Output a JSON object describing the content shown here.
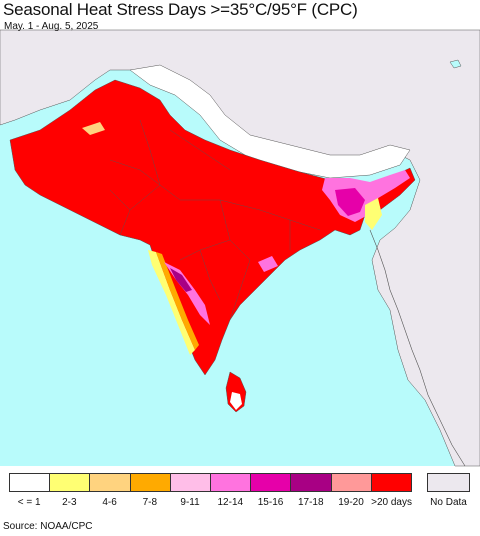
{
  "header": {
    "title": "Seasonal Heat Stress Days >=35°C/95°F (CPC)",
    "date_range": "May. 1 - Aug. 5, 2025"
  },
  "map": {
    "colors": {
      "ocean": "#b8fbfb",
      "no_data_land": "#ece8ee",
      "border_line": "#555555"
    }
  },
  "legend": {
    "items": [
      {
        "label": "< = 1",
        "color": "#ffffff"
      },
      {
        "label": "2-3",
        "color": "#ffff73"
      },
      {
        "label": "4-6",
        "color": "#ffd37f"
      },
      {
        "label": "7-8",
        "color": "#ffaa00"
      },
      {
        "label": "9-11",
        "color": "#ffbee8"
      },
      {
        "label": "12-14",
        "color": "#ff73df"
      },
      {
        "label": "15-16",
        "color": "#e600a9"
      },
      {
        "label": "17-18",
        "color": "#a80084"
      },
      {
        "label": "19-20",
        "color": "#ff9999"
      },
      {
        "label": ">20 days",
        "color": "#ff0000"
      }
    ],
    "no_data": {
      "label": "No Data",
      "color": "#ece8ee"
    }
  },
  "footer": {
    "source": "Source: NOAA/CPC"
  }
}
